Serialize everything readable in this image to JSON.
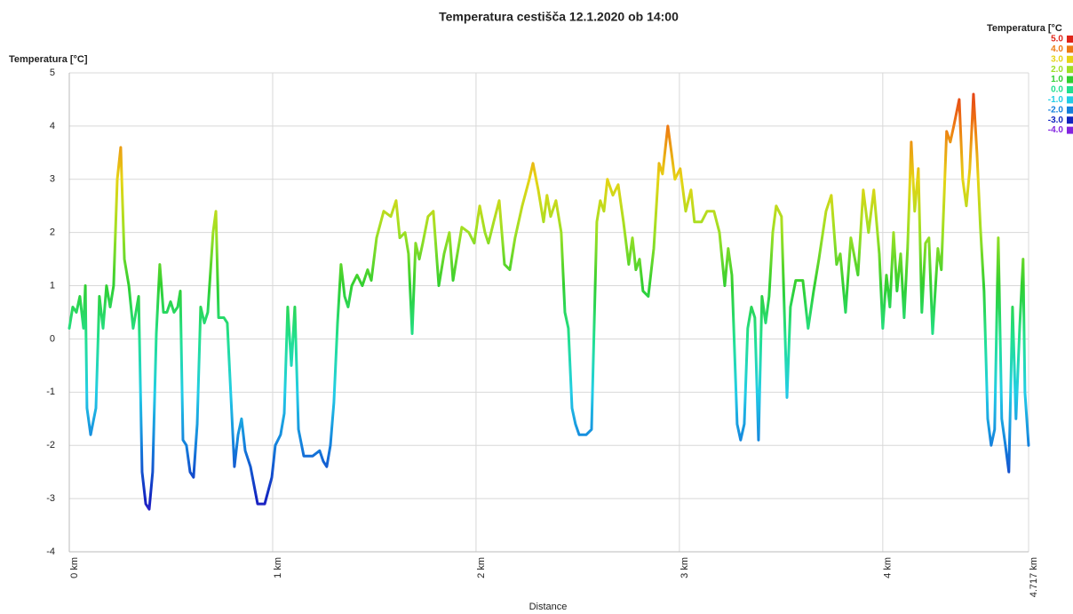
{
  "chart_data": {
    "type": "line",
    "title": "Temperatura cestišča 12.1.2020 ob 14:00",
    "ylabel": "Temperatura [°C]",
    "xlabel": "Distance",
    "xlim": [
      0,
      4.717
    ],
    "ylim": [
      -4,
      5
    ],
    "xticks": [
      {
        "value": 0,
        "label": "0 km"
      },
      {
        "value": 1,
        "label": "1 km"
      },
      {
        "value": 2,
        "label": "2 km"
      },
      {
        "value": 3,
        "label": "3 km"
      },
      {
        "value": 4,
        "label": "4 km"
      },
      {
        "value": 4.717,
        "label": "4.717 km"
      }
    ],
    "yticks": [
      -4,
      -3,
      -2,
      -1,
      0,
      1,
      2,
      3,
      4,
      5
    ],
    "grid": true,
    "legend": {
      "title": "Temperatura [°C",
      "items": [
        {
          "value": 5,
          "label": "5.0",
          "color": "#e02418"
        },
        {
          "value": 4,
          "label": "4.0",
          "color": "#ee7a12"
        },
        {
          "value": 3,
          "label": "3.0",
          "color": "#e6d414"
        },
        {
          "value": 2,
          "label": "2.0",
          "color": "#9ee024"
        },
        {
          "value": 1,
          "label": "1.0",
          "color": "#30cf30"
        },
        {
          "value": 0,
          "label": "0.0",
          "color": "#22e090"
        },
        {
          "value": -1,
          "label": "-1.0",
          "color": "#22cde6"
        },
        {
          "value": -2,
          "label": "-2.0",
          "color": "#1480dc"
        },
        {
          "value": -3,
          "label": "-3.0",
          "color": "#1224c0"
        },
        {
          "value": -4,
          "label": "-4.0",
          "color": "#8224e0"
        }
      ]
    },
    "series": [
      {
        "name": "Temperatura",
        "x": [
          0,
          0.017,
          0.035,
          0.052,
          0.07,
          0.079,
          0.087,
          0.105,
          0.131,
          0.148,
          0.166,
          0.183,
          0.201,
          0.218,
          0.236,
          0.253,
          0.271,
          0.293,
          0.314,
          0.341,
          0.358,
          0.376,
          0.393,
          0.41,
          0.428,
          0.445,
          0.463,
          0.48,
          0.498,
          0.515,
          0.533,
          0.546,
          0.559,
          0.576,
          0.594,
          0.611,
          0.629,
          0.646,
          0.664,
          0.681,
          0.707,
          0.721,
          0.734,
          0.76,
          0.777,
          0.795,
          0.812,
          0.83,
          0.847,
          0.865,
          0.891,
          0.926,
          0.961,
          0.996,
          1.013,
          1.039,
          1.057,
          1.074,
          1.092,
          1.109,
          1.127,
          1.153,
          1.197,
          1.231,
          1.249,
          1.266,
          1.284,
          1.301,
          1.319,
          1.336,
          1.354,
          1.371,
          1.389,
          1.415,
          1.441,
          1.467,
          1.485,
          1.511,
          1.546,
          1.581,
          1.607,
          1.625,
          1.651,
          1.668,
          1.686,
          1.703,
          1.721,
          1.738,
          1.764,
          1.79,
          1.817,
          1.843,
          1.869,
          1.887,
          1.904,
          1.93,
          1.965,
          1.991,
          2.018,
          2.044,
          2.061,
          2.087,
          2.114,
          2.14,
          2.166,
          2.192,
          2.227,
          2.262,
          2.28,
          2.306,
          2.332,
          2.349,
          2.367,
          2.393,
          2.419,
          2.437,
          2.454,
          2.472,
          2.489,
          2.507,
          2.542,
          2.568,
          2.594,
          2.611,
          2.629,
          2.646,
          2.673,
          2.699,
          2.725,
          2.751,
          2.769,
          2.786,
          2.804,
          2.821,
          2.847,
          2.874,
          2.9,
          2.917,
          2.943,
          2.961,
          2.978,
          3.004,
          3.031,
          3.057,
          3.074,
          3.109,
          3.136,
          3.17,
          3.197,
          3.223,
          3.24,
          3.258,
          3.284,
          3.301,
          3.319,
          3.336,
          3.354,
          3.371,
          3.389,
          3.406,
          3.424,
          3.441,
          3.459,
          3.476,
          3.502,
          3.529,
          3.546,
          3.572,
          3.607,
          3.633,
          3.66,
          3.686,
          3.721,
          3.747,
          3.773,
          3.791,
          3.817,
          3.843,
          3.878,
          3.904,
          3.93,
          3.956,
          3.983,
          4.0,
          4.018,
          4.035,
          4.053,
          4.07,
          4.088,
          4.105,
          4.122,
          4.14,
          4.157,
          4.175,
          4.192,
          4.21,
          4.227,
          4.245,
          4.271,
          4.288,
          4.314,
          4.332,
          4.349,
          4.376,
          4.393,
          4.411,
          4.428,
          4.446,
          4.463,
          4.48,
          4.498,
          4.516,
          4.533,
          4.55,
          4.568,
          4.585,
          4.603,
          4.62,
          4.638,
          4.655,
          4.673,
          4.69,
          4.699,
          4.717
        ],
        "values": [
          0.2,
          0.6,
          0.5,
          0.8,
          0.2,
          1.0,
          -1.3,
          -1.8,
          -1.3,
          0.8,
          0.2,
          1.0,
          0.6,
          1.0,
          3.0,
          3.6,
          1.5,
          1.0,
          0.2,
          0.8,
          -2.5,
          -3.1,
          -3.2,
          -2.5,
          0.1,
          1.4,
          0.5,
          0.5,
          0.7,
          0.5,
          0.6,
          0.9,
          -1.9,
          -2.0,
          -2.5,
          -2.6,
          -1.6,
          0.6,
          0.3,
          0.5,
          2.0,
          2.4,
          0.4,
          0.4,
          0.3,
          -1.1,
          -2.4,
          -1.8,
          -1.5,
          -2.1,
          -2.4,
          -3.1,
          -3.1,
          -2.6,
          -2.0,
          -1.8,
          -1.4,
          0.6,
          -0.5,
          0.6,
          -1.7,
          -2.2,
          -2.2,
          -2.1,
          -2.3,
          -2.4,
          -2.0,
          -1.2,
          0.3,
          1.4,
          0.8,
          0.6,
          1.0,
          1.2,
          1.0,
          1.3,
          1.1,
          1.9,
          2.4,
          2.3,
          2.6,
          1.9,
          2.0,
          1.6,
          0.1,
          1.8,
          1.5,
          1.8,
          2.3,
          2.4,
          1.0,
          1.6,
          2.0,
          1.1,
          1.5,
          2.1,
          2.0,
          1.8,
          2.5,
          2.0,
          1.8,
          2.2,
          2.6,
          1.4,
          1.3,
          1.9,
          2.5,
          3.0,
          3.3,
          2.8,
          2.2,
          2.7,
          2.3,
          2.6,
          2.0,
          0.5,
          0.2,
          -1.3,
          -1.6,
          -1.8,
          -1.8,
          -1.7,
          2.2,
          2.6,
          2.4,
          3.0,
          2.7,
          2.9,
          2.2,
          1.4,
          1.9,
          1.3,
          1.5,
          0.9,
          0.8,
          1.7,
          3.3,
          3.1,
          4.0,
          3.5,
          3.0,
          3.2,
          2.4,
          2.8,
          2.2,
          2.2,
          2.4,
          2.4,
          2.0,
          1.0,
          1.7,
          1.2,
          -1.6,
          -1.9,
          -1.6,
          0.2,
          0.6,
          0.4,
          -1.9,
          0.8,
          0.3,
          0.8,
          2.0,
          2.5,
          2.3,
          -1.1,
          0.6,
          1.1,
          1.1,
          0.2,
          0.9,
          1.5,
          2.4,
          2.7,
          1.4,
          1.6,
          0.5,
          1.9,
          1.2,
          2.8,
          2.0,
          2.8,
          1.6,
          0.2,
          1.2,
          0.6,
          2.0,
          0.9,
          1.6,
          0.4,
          1.7,
          3.7,
          2.4,
          3.2,
          0.5,
          1.8,
          1.9,
          0.1,
          1.7,
          1.3,
          3.9,
          3.7,
          4.0,
          4.5,
          3.0,
          2.5,
          3.2,
          4.6,
          3.5,
          2.1,
          0.9,
          -1.5,
          -2.0,
          -1.7,
          1.9,
          -1.5,
          -2.0,
          -2.5,
          0.6,
          -1.5,
          0.2,
          1.5,
          -1.0,
          -2.0
        ]
      }
    ]
  }
}
